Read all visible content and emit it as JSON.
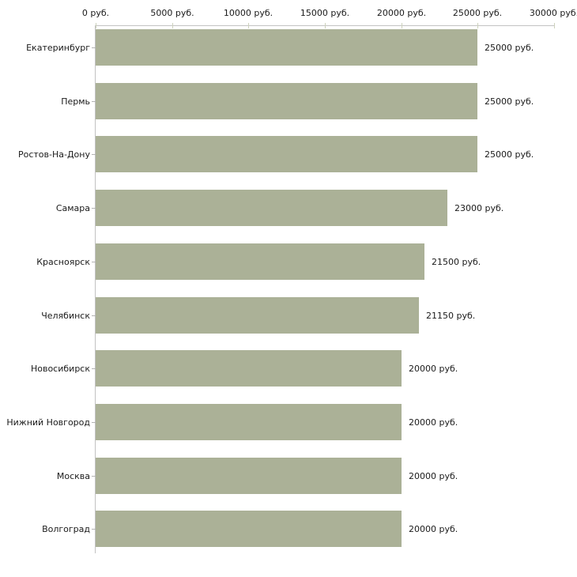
{
  "chart_data": {
    "type": "bar",
    "orientation": "horizontal",
    "title": "",
    "xlabel": "",
    "ylabel": "",
    "unit": "руб.",
    "xlim": [
      0,
      30000
    ],
    "grid": false,
    "legend": null,
    "categories": [
      "Екатеринбург",
      "Пермь",
      "Ростов-На-Дону",
      "Самара",
      "Красноярск",
      "Челябинск",
      "Новосибирск",
      "Нижний Новгород",
      "Москва",
      "Волгоград"
    ],
    "values": [
      25000,
      25000,
      25000,
      23000,
      21500,
      21150,
      20000,
      20000,
      20000,
      20000
    ],
    "value_labels": [
      "25000 руб.",
      "25000 руб.",
      "25000 руб.",
      "23000 руб.",
      "21500 руб.",
      "21150 руб.",
      "20000 руб.",
      "20000 руб.",
      "20000 руб.",
      "20000 руб."
    ],
    "x_ticks": [
      0,
      5000,
      10000,
      15000,
      20000,
      25000,
      30000
    ],
    "x_tick_labels": [
      "0 руб.",
      "5000 руб.",
      "10000 руб.",
      "15000 руб.",
      "20000 руб.",
      "25000 руб.",
      "30000 руб."
    ],
    "colors": {
      "bar": "#abb197",
      "axis_line": "#c2c2c2",
      "top_tick": "#cdd2bd",
      "side_tick": "#b3b3b3",
      "text": "#1a1a1a",
      "background": "#ffffff"
    }
  }
}
